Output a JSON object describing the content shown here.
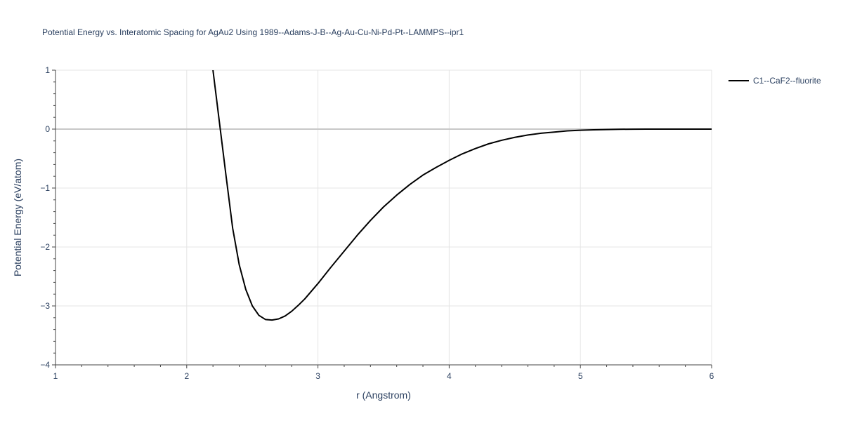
{
  "chart_data": {
    "type": "line",
    "title": "Potential Energy vs. Interatomic Spacing for AgAu2 Using 1989--Adams-J-B--Ag-Au-Cu-Ni-Pd-Pt--LAMMPS--ipr1",
    "xlabel": "r (Angstrom)",
    "ylabel": "Potential Energy (eV/atom)",
    "xlim": [
      1,
      6
    ],
    "ylim": [
      -4,
      1
    ],
    "x_ticks": [
      "1",
      "2",
      "3",
      "4",
      "5",
      "6"
    ],
    "y_ticks": [
      "1",
      "0",
      "−1",
      "−2",
      "−3",
      "−4"
    ],
    "grid": true,
    "legend_position": "top-right",
    "series": [
      {
        "name": "C1--CaF2--fluorite",
        "color": "#000000",
        "x": [
          2.2,
          2.225,
          2.25,
          2.275,
          2.3,
          2.35,
          2.4,
          2.45,
          2.5,
          2.55,
          2.6,
          2.65,
          2.7,
          2.75,
          2.8,
          2.85,
          2.9,
          3.0,
          3.1,
          3.2,
          3.3,
          3.4,
          3.5,
          3.6,
          3.7,
          3.8,
          3.9,
          4.0,
          4.1,
          4.2,
          4.3,
          4.4,
          4.5,
          4.6,
          4.7,
          4.8,
          4.9,
          5.0,
          5.1,
          5.2,
          5.3,
          5.4,
          5.5,
          5.6,
          5.7,
          5.8,
          5.9,
          6.0
        ],
        "y": [
          1.0,
          0.55,
          0.1,
          -0.35,
          -0.8,
          -1.68,
          -2.3,
          -2.72,
          -3.0,
          -3.16,
          -3.23,
          -3.24,
          -3.22,
          -3.17,
          -3.09,
          -2.99,
          -2.88,
          -2.62,
          -2.34,
          -2.07,
          -1.8,
          -1.55,
          -1.32,
          -1.12,
          -0.94,
          -0.78,
          -0.65,
          -0.53,
          -0.42,
          -0.33,
          -0.25,
          -0.19,
          -0.14,
          -0.1,
          -0.07,
          -0.05,
          -0.03,
          -0.02,
          -0.012,
          -0.007,
          -0.003,
          -0.001,
          0.0,
          0.0,
          0.0,
          0.0,
          0.0,
          0.0
        ]
      }
    ]
  }
}
